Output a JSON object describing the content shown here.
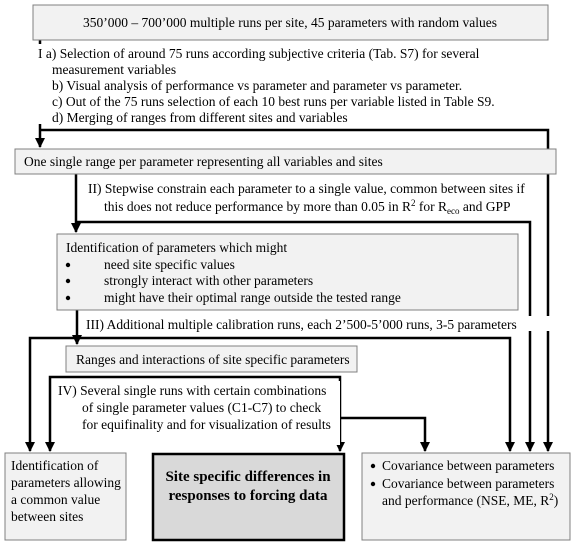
{
  "top_box": {
    "text": "350’000 – 700’000 multiple runs per site, 45 parameters with random values"
  },
  "step_1": {
    "lines": [
      "I  a) Selection of around 75 runs according subjective criteria (Tab. S7) for several",
      "measurement variables",
      "b) Visual analysis of performance vs parameter and parameter vs parameter.",
      "c) Out of the 75 runs selection of each 10 best runs per variable listed in Table S9.",
      "d) Merging of  ranges from different sites and variables"
    ]
  },
  "range_box": {
    "text": "One single range per parameter representing all variables and sites"
  },
  "step_2": {
    "line_1": "II) Stepwise constrain each parameter to a single value, common between sites if",
    "line_2_parts": [
      "this does not reduce performance by more than 0.05 in R",
      "2",
      " for R",
      "eco",
      " and GPP"
    ]
  },
  "identification_box": {
    "title": "Identification of parameters which might",
    "bullets": [
      "need site specific values",
      "strongly interact with other parameters",
      "might have their optimal range outside the tested range"
    ]
  },
  "step_3": {
    "text": "III) Additional multiple calibration runs, each 2’500-5’000 runs, 3-5 parameters"
  },
  "site_box": {
    "text": "Ranges and interactions of site specific parameters"
  },
  "step_4": {
    "lines": [
      "IV) Several single runs with certain combinations",
      "of single parameter values (C1-C7) to check",
      "for equifinality and for visualization of results"
    ]
  },
  "outcomes": {
    "left": [
      "Identification of",
      "parameters allowing",
      "a common value",
      "between sites"
    ],
    "center": [
      "Site specific differences in",
      "responses to forcing data"
    ],
    "right": {
      "bullet_1": "Covariance between parameters",
      "bullet_2_line_1": "Covariance between parameters",
      "bullet_2_line_2_parts": [
        "and performance (NSE, ME, R",
        "2",
        ")"
      ]
    }
  }
}
